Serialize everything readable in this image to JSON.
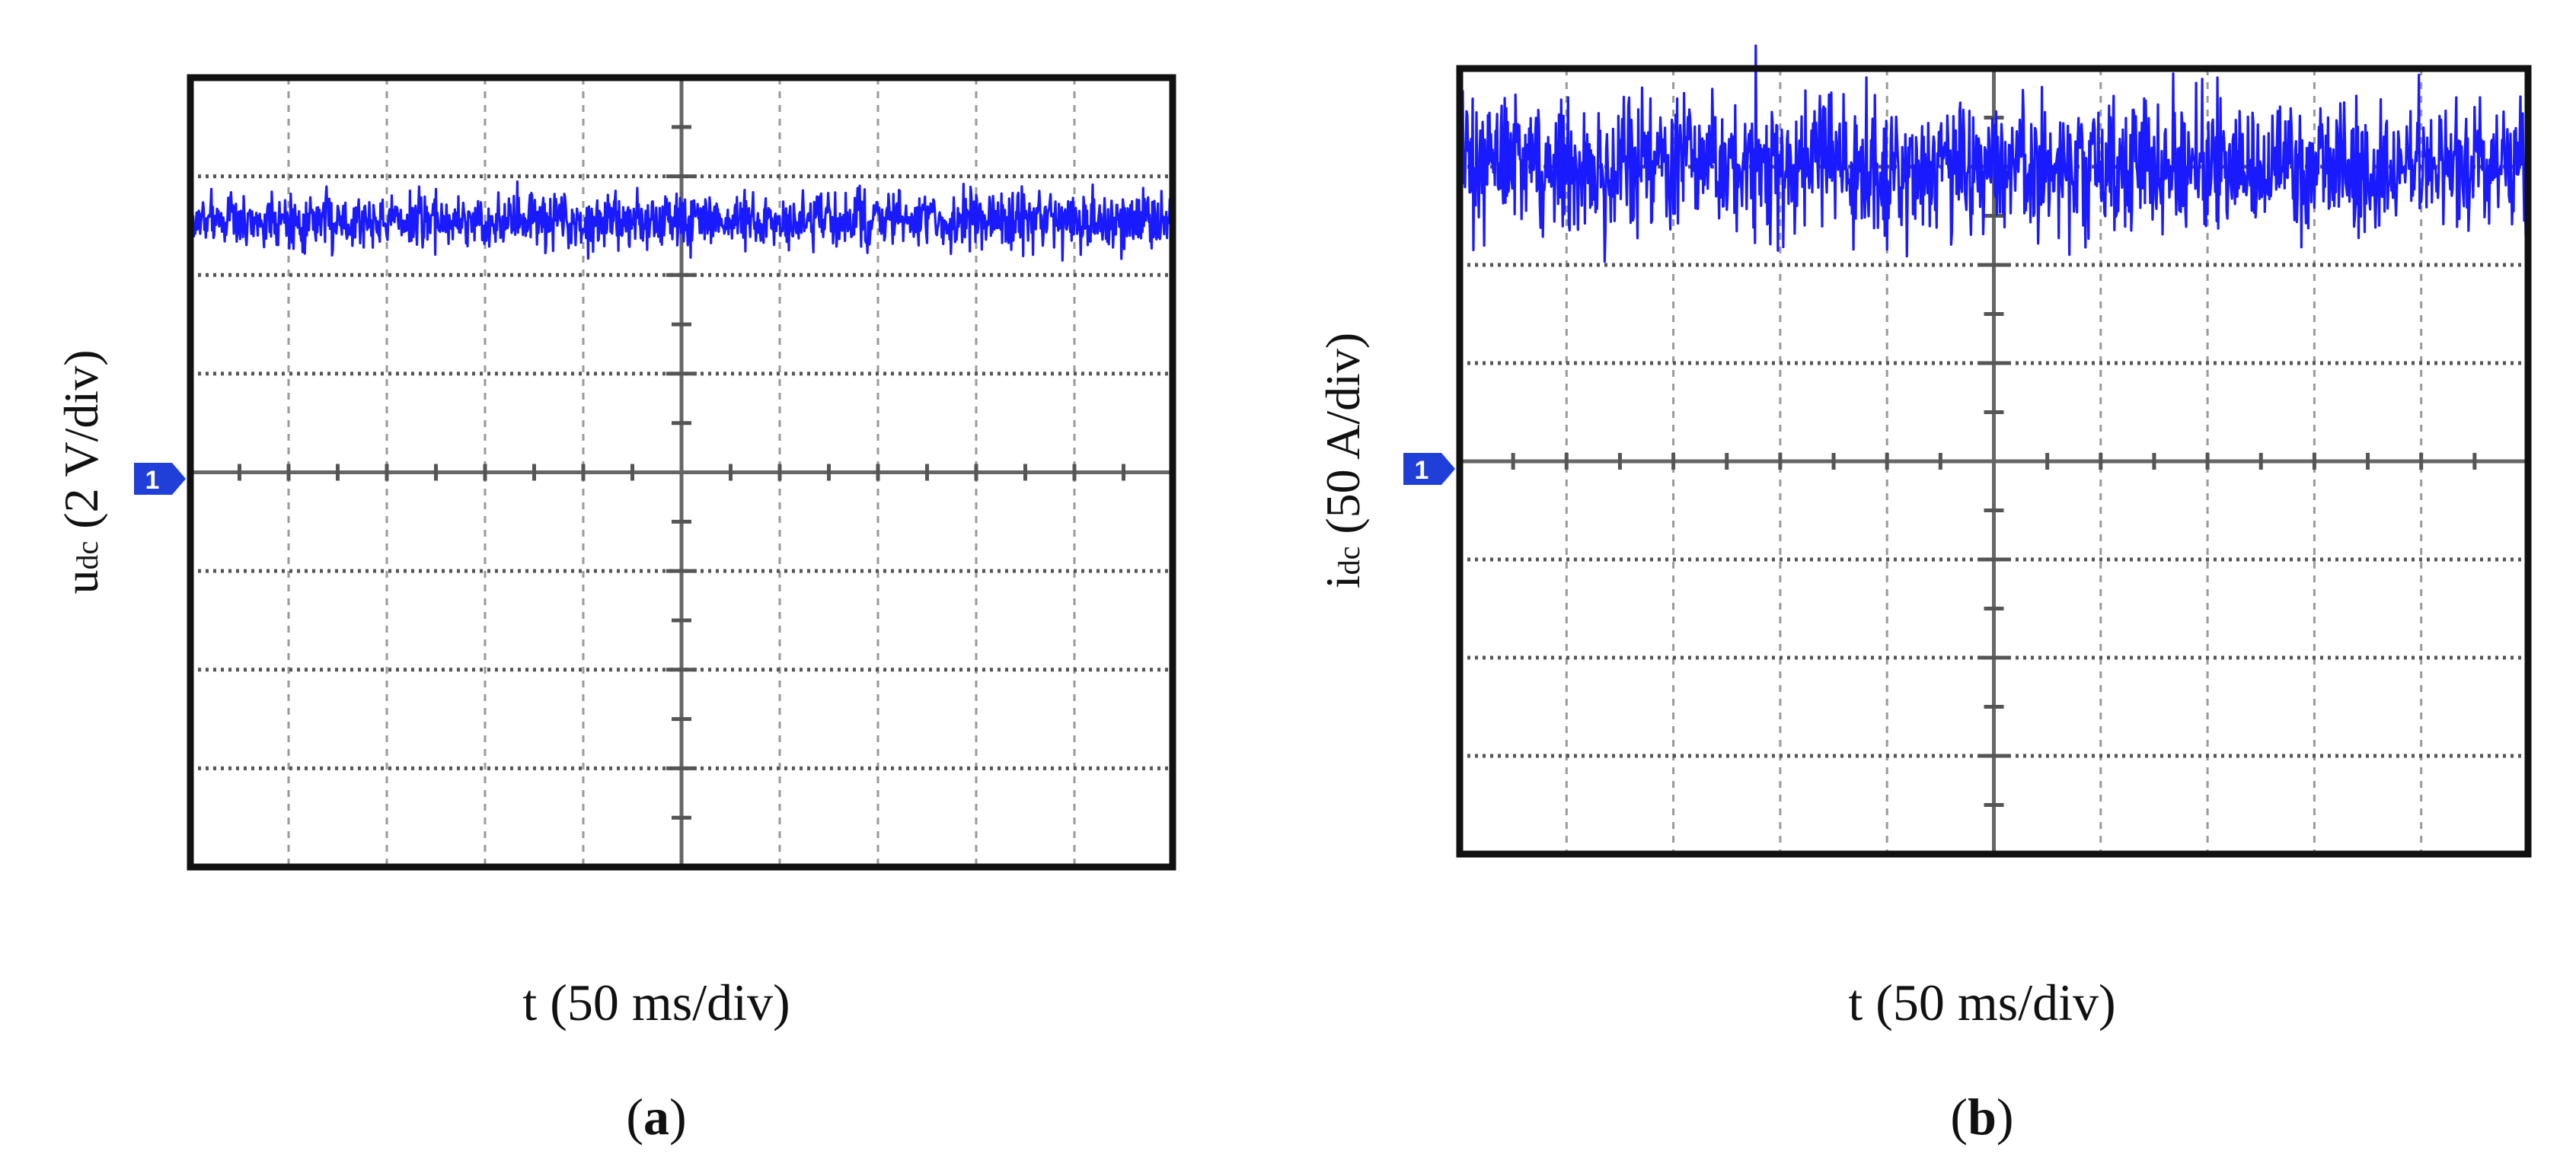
{
  "colors": {
    "trace": "#1a1aff",
    "frame": "#111111",
    "marker": "#1f3fd8"
  },
  "chart_data": [
    {
      "type": "line",
      "panel": "(a)",
      "sub_label": {
        "open": "(",
        "letter": "a",
        "close": ")"
      },
      "ylabel": {
        "sym": "u",
        "sub": "dc",
        "rest": " (2 V/div)"
      },
      "xlabel": "t (50 ms/div)",
      "marker": "1",
      "grid": {
        "x_divisions": 10,
        "y_divisions": 8
      },
      "xlim": [
        0,
        10
      ],
      "ylim": [
        -4,
        4
      ],
      "x_unit": "div (50 ms/div)",
      "y_unit": "div (2 V/div)",
      "series": [
        {
          "level": 2.55,
          "noise": 0.14,
          "spikes": 0.1
        }
      ]
    },
    {
      "type": "line",
      "panel": "(b)",
      "sub_label": {
        "open": "(",
        "letter": "b",
        "close": ")"
      },
      "ylabel": {
        "sym": "i",
        "sub": "dc",
        "rest": " (50 A/div)"
      },
      "xlabel": "t (50 ms/div)",
      "marker": "1",
      "grid": {
        "x_divisions": 10,
        "y_divisions": 8
      },
      "xlim": [
        0,
        10
      ],
      "ylim": [
        -4,
        4
      ],
      "x_unit": "div (50 ms/div)",
      "y_unit": "div (50 A/div)",
      "series": [
        {
          "level": 3.0,
          "noise": 0.33,
          "spikes": 0.5
        }
      ]
    }
  ]
}
